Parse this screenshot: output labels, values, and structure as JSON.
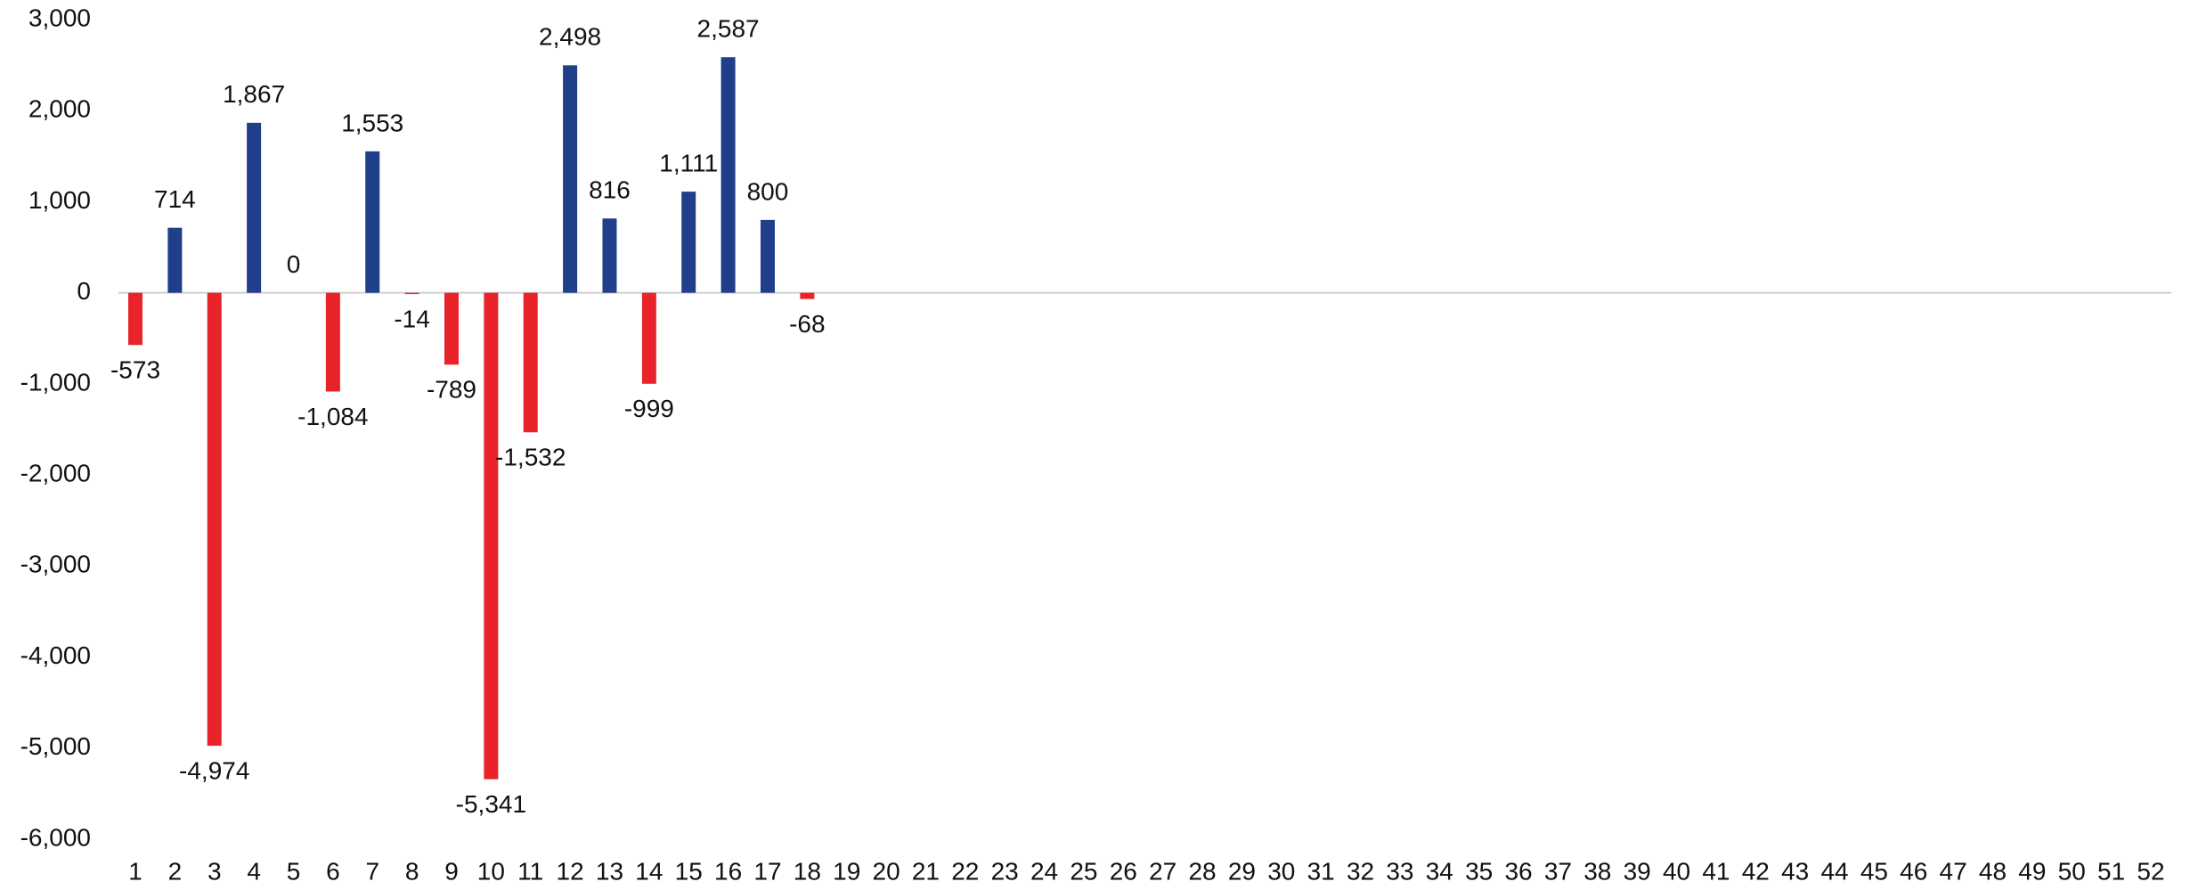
{
  "chart_data": {
    "type": "bar",
    "categories": [
      "1",
      "2",
      "3",
      "4",
      "5",
      "6",
      "7",
      "8",
      "9",
      "10",
      "11",
      "12",
      "13",
      "14",
      "15",
      "16",
      "17",
      "18",
      "19",
      "20",
      "21",
      "22",
      "23",
      "24",
      "25",
      "26",
      "27",
      "28",
      "29",
      "30",
      "31",
      "32",
      "33",
      "34",
      "35",
      "36",
      "37",
      "38",
      "39",
      "40",
      "41",
      "42",
      "43",
      "44",
      "45",
      "46",
      "47",
      "48",
      "49",
      "50",
      "51",
      "52"
    ],
    "values": [
      -573,
      714,
      -4974,
      1867,
      0,
      -1084,
      1553,
      -14,
      -789,
      -5341,
      -1532,
      2498,
      816,
      -999,
      1111,
      2587,
      800,
      -68,
      null,
      null,
      null,
      null,
      null,
      null,
      null,
      null,
      null,
      null,
      null,
      null,
      null,
      null,
      null,
      null,
      null,
      null,
      null,
      null,
      null,
      null,
      null,
      null,
      null,
      null,
      null,
      null,
      null,
      null,
      null,
      null,
      null,
      null
    ],
    "value_labels": [
      "-573",
      "714",
      "-4,974",
      "1,867",
      "0",
      "-1,084",
      "1,553",
      "-14",
      "-789",
      "-5,341",
      "-1,532",
      "2,498",
      "816",
      "-999",
      "1,111",
      "2,587",
      "800",
      "-68",
      null,
      null,
      null,
      null,
      null,
      null,
      null,
      null,
      null,
      null,
      null,
      null,
      null,
      null,
      null,
      null,
      null,
      null,
      null,
      null,
      null,
      null,
      null,
      null,
      null,
      null,
      null,
      null,
      null,
      null,
      null,
      null,
      null,
      null
    ],
    "positive_color": "#1f3f8a",
    "negative_color": "#e8242a",
    "ylim": [
      -6000,
      3000
    ],
    "yticks": [
      {
        "value": -6000,
        "label": "-6,000"
      },
      {
        "value": -5000,
        "label": "-5,000"
      },
      {
        "value": -4000,
        "label": "-4,000"
      },
      {
        "value": -3000,
        "label": "-3,000"
      },
      {
        "value": -2000,
        "label": "-2,000"
      },
      {
        "value": -1000,
        "label": "-1,000"
      },
      0,
      {
        "value": 1000,
        "label": "1,000"
      },
      {
        "value": 2000,
        "label": "2,000"
      },
      {
        "value": 3000,
        "label": "3,000"
      }
    ],
    "grid": false
  }
}
